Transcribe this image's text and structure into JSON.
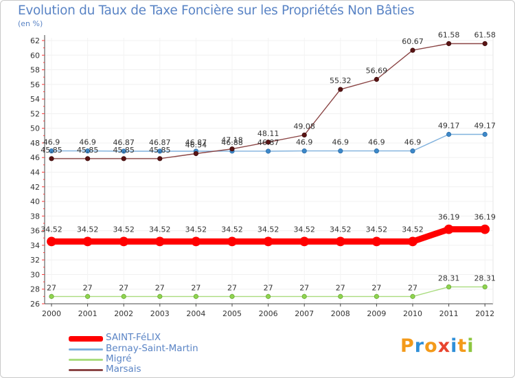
{
  "title": "Evolution du Taux de Taxe Foncière sur les Propriétés Non Bâties",
  "unit_label": "(en %)",
  "logo": {
    "letters": [
      "P",
      "r",
      "o",
      "x",
      "i",
      "t",
      "i"
    ],
    "colors": [
      "#f39a1a",
      "#2f8fd8",
      "#f39a1a",
      "#e8442e",
      "#2f8fd8",
      "#f39a1a",
      "#8cc63f"
    ]
  },
  "chart_data": {
    "type": "line",
    "title": "Evolution du Taux de Taxe Foncière sur les Propriétés Non Bâties",
    "ylabel": "(en %)",
    "xlabel": "",
    "ylim": [
      26,
      62
    ],
    "yticks": [
      26,
      28,
      30,
      32,
      34,
      36,
      38,
      40,
      42,
      44,
      46,
      48,
      50,
      52,
      54,
      56,
      58,
      60,
      62
    ],
    "x": [
      "2000",
      "2001",
      "2002",
      "2003",
      "2004",
      "2005",
      "2006",
      "2007",
      "2008",
      "2009",
      "2010",
      "2011",
      "2012"
    ],
    "series": [
      {
        "name": "SAINT-FéLIX",
        "color": "#ff0000",
        "values": [
          34.52,
          34.52,
          34.52,
          34.52,
          34.52,
          34.52,
          34.52,
          34.52,
          34.52,
          34.52,
          34.52,
          36.19,
          36.19
        ],
        "labels": [
          "34.52",
          "34.52",
          "34.52",
          "34.52",
          "34.52",
          "34.52",
          "34.52",
          "34.52",
          "34.52",
          "34.52",
          "34.52",
          "36.19",
          "36.19"
        ]
      },
      {
        "name": "Bernay-Saint-Martin",
        "color": "#4f93cf",
        "values": [
          46.9,
          46.9,
          46.87,
          46.87,
          46.87,
          46.88,
          46.87,
          46.9,
          46.9,
          46.9,
          46.9,
          49.17,
          49.17
        ],
        "labels": [
          "46.9",
          "46.9",
          "46.87",
          "46.87",
          "46.87",
          "46.88",
          "46.87",
          "46.9",
          "46.9",
          "46.9",
          "46.9",
          "49.17",
          "49.17"
        ]
      },
      {
        "name": "Migré",
        "color": "#99d466",
        "values": [
          27,
          27,
          27,
          27,
          27,
          27,
          27,
          27,
          27,
          27,
          27,
          28.31,
          28.31
        ],
        "labels": [
          "27",
          "27",
          "27",
          "27",
          "27",
          "27",
          "27",
          "27",
          "27",
          "27",
          "27",
          "28.31",
          "28.31"
        ]
      },
      {
        "name": "Marsais",
        "color": "#6e1d1d",
        "values": [
          45.85,
          45.85,
          45.85,
          45.85,
          46.54,
          47.18,
          48.11,
          49.08,
          55.32,
          56.69,
          60.67,
          61.58,
          61.58
        ],
        "labels": [
          "45.85",
          "45.85",
          "45.85",
          "45.85",
          "46.54",
          "47.18",
          "48.11",
          "49.08",
          "55.32",
          "56.69",
          "60.67",
          "61.58",
          "61.58"
        ]
      }
    ]
  }
}
